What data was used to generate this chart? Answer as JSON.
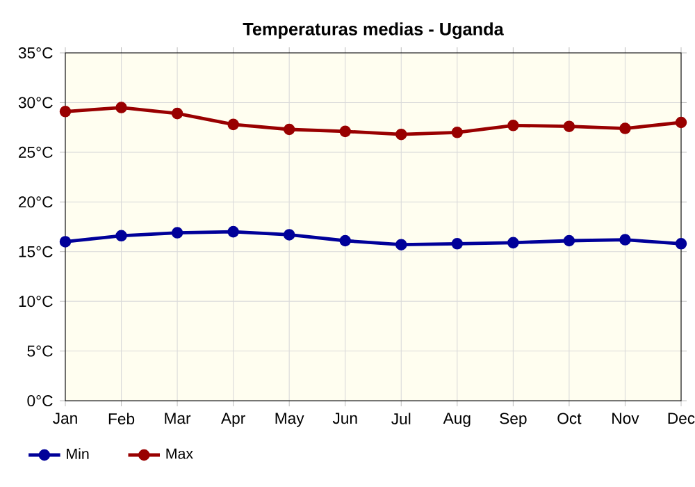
{
  "chart_data": {
    "type": "line",
    "title": "Temperaturas medias - Uganda",
    "categories": [
      "Jan",
      "Feb",
      "Mar",
      "Apr",
      "May",
      "Jun",
      "Jul",
      "Aug",
      "Sep",
      "Oct",
      "Nov",
      "Dec"
    ],
    "series": [
      {
        "name": "Min",
        "color": "#000099",
        "values": [
          16.0,
          16.6,
          16.9,
          17.0,
          16.7,
          16.1,
          15.7,
          15.8,
          15.9,
          16.1,
          16.2,
          15.8
        ]
      },
      {
        "name": "Max",
        "color": "#990000",
        "values": [
          29.1,
          29.5,
          28.9,
          27.8,
          27.3,
          27.1,
          26.8,
          27.0,
          27.7,
          27.6,
          27.4,
          28.0
        ]
      }
    ],
    "ylim": [
      0,
      35
    ],
    "yticks": [
      {
        "value": 0,
        "label": "0°C"
      },
      {
        "value": 5,
        "label": "5°C"
      },
      {
        "value": 10,
        "label": "10°C"
      },
      {
        "value": 15,
        "label": "15°C"
      },
      {
        "value": 20,
        "label": "20°C"
      },
      {
        "value": 25,
        "label": "25°C"
      },
      {
        "value": 30,
        "label": "30°C"
      },
      {
        "value": 35,
        "label": "35°C"
      }
    ],
    "grid": true,
    "legend": "bottom left",
    "marker": "circle",
    "line_style": "solid"
  }
}
